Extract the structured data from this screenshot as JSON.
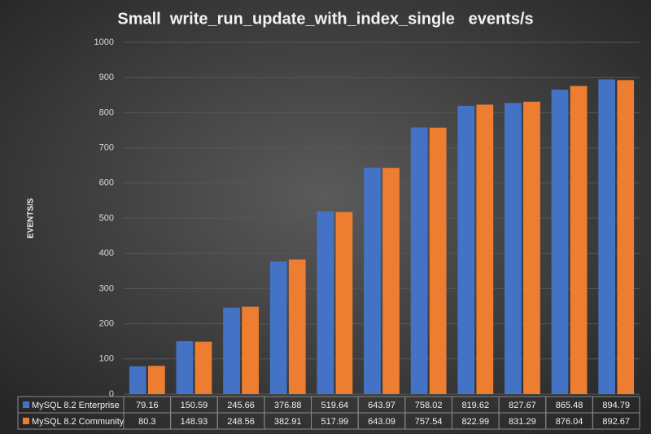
{
  "chart_data": {
    "type": "bar",
    "title": "Small  write_run_update_with_index_single   events/s",
    "y_label": "EVENTS/S",
    "ylim": [
      0,
      1000
    ],
    "yticks": [
      0,
      100,
      200,
      300,
      400,
      500,
      600,
      700,
      800,
      900,
      1000
    ],
    "grid": true,
    "series": [
      {
        "name": "MySQL 8.2 Enterprise",
        "color": "#4472c4",
        "values": [
          79.16,
          150.59,
          245.66,
          376.88,
          519.64,
          643.97,
          758.02,
          819.62,
          827.67,
          865.48,
          894.79
        ]
      },
      {
        "name": "MySQL 8.2 Community",
        "color": "#ed7d31",
        "values": [
          80.3,
          148.93,
          248.56,
          382.91,
          517.99,
          643.09,
          757.54,
          822.99,
          831.29,
          876.04,
          892.67
        ]
      }
    ]
  }
}
